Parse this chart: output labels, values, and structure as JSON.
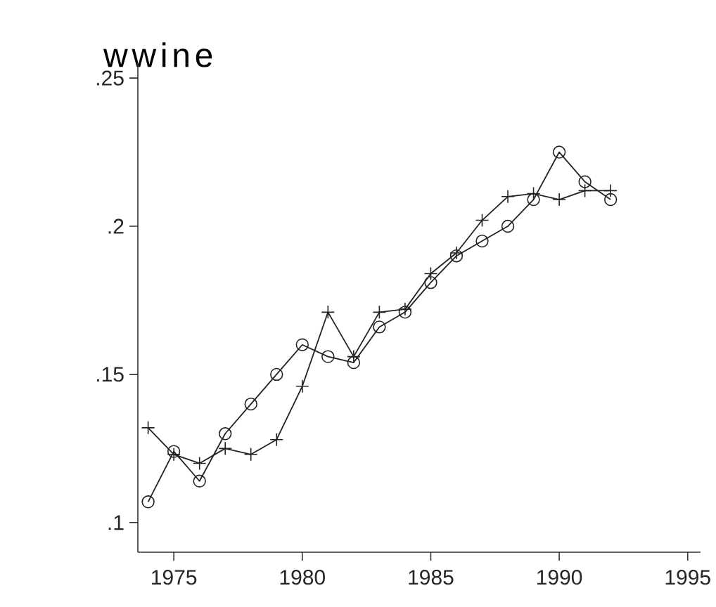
{
  "chart_data": {
    "type": "line",
    "title": "wwine",
    "x": [
      1974,
      1975,
      1976,
      1977,
      1978,
      1979,
      1980,
      1981,
      1982,
      1983,
      1984,
      1985,
      1986,
      1987,
      1988,
      1989,
      1990,
      1991,
      1992
    ],
    "series": [
      {
        "color": "#222222",
        "marker": "circle",
        "values": [
          0.107,
          0.124,
          0.114,
          0.13,
          0.14,
          0.15,
          0.16,
          0.156,
          0.154,
          0.166,
          0.171,
          0.181,
          0.19,
          0.195,
          0.2,
          0.209,
          0.225,
          0.215,
          0.209
        ]
      },
      {
        "color": "#222222",
        "marker": "cross",
        "values": [
          0.132,
          0.123,
          0.12,
          0.125,
          0.123,
          0.128,
          0.146,
          0.171,
          0.156,
          0.171,
          0.172,
          0.184,
          0.191,
          0.202,
          0.21,
          0.211,
          0.209,
          0.212,
          0.212
        ]
      }
    ],
    "xlim": [
      1973.6,
      1995.5
    ],
    "ylim": [
      0.09,
      0.255
    ],
    "xticks": [
      1975,
      1980,
      1985,
      1990,
      1995
    ],
    "yticks": [
      {
        "value": 0.1,
        "label": ".1"
      },
      {
        "value": 0.15,
        "label": ".15"
      },
      {
        "value": 0.2,
        "label": ".2"
      },
      {
        "value": 0.25,
        "label": ".25"
      }
    ],
    "grid": false,
    "line_style": "solid"
  }
}
